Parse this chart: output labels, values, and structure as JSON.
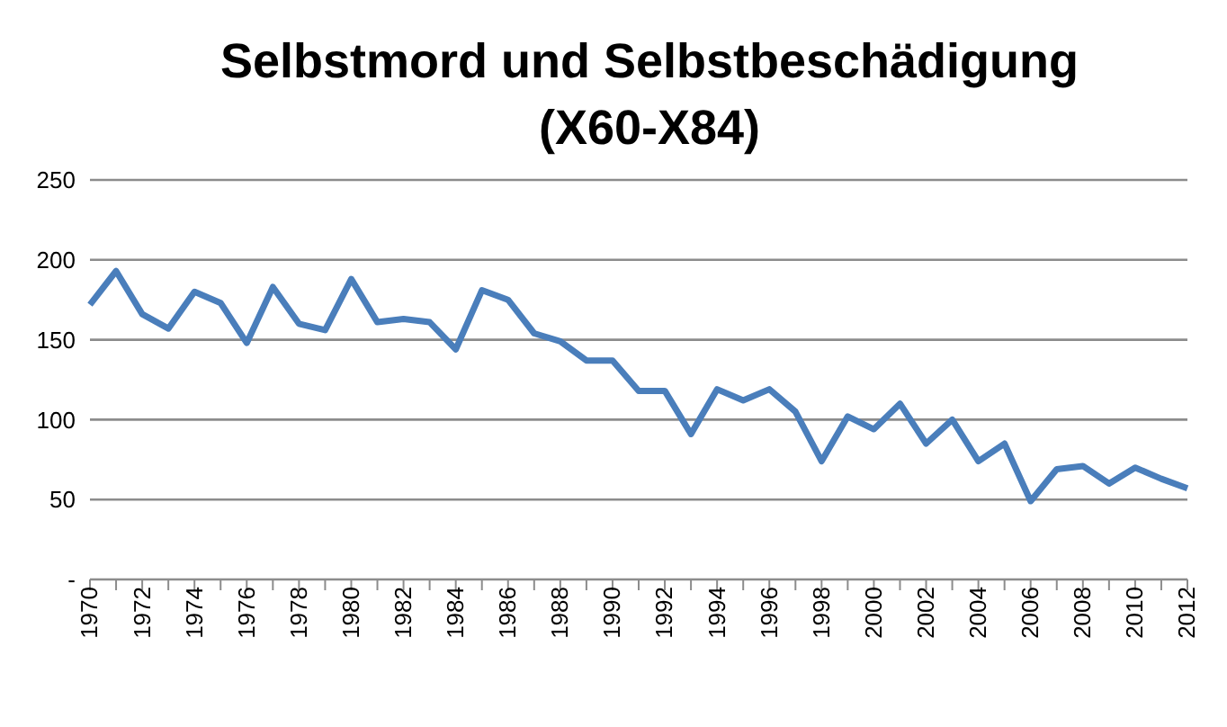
{
  "chart_data": {
    "type": "line",
    "title": "Selbstmord und Selbstbeschädigung\n(X60-X84)",
    "categories": [
      "1970",
      null,
      "1972",
      null,
      "1974",
      null,
      "1976",
      null,
      "1978",
      null,
      "1980",
      null,
      "1982",
      null,
      "1984",
      null,
      "1986",
      null,
      "1988",
      null,
      "1990",
      null,
      "1992",
      null,
      "1994",
      null,
      "1996",
      null,
      "1998",
      null,
      "2000",
      null,
      "2002",
      null,
      "2004",
      null,
      "2006",
      null,
      "2008",
      null,
      "2010",
      null,
      "2012"
    ],
    "series": [
      {
        "color": "#4a7ebb",
        "values": [
          172,
          193,
          166,
          157,
          180,
          173,
          148,
          183,
          160,
          156,
          188,
          161,
          163,
          161,
          144,
          181,
          175,
          154,
          149,
          137,
          137,
          118,
          118,
          91,
          119,
          112,
          119,
          105,
          74,
          102,
          94,
          110,
          85,
          100,
          74,
          85,
          49,
          69,
          71,
          60,
          70,
          63,
          57
        ]
      }
    ],
    "ylim": [
      0,
      250
    ],
    "yticks": [
      {
        "value": 0,
        "label": "-"
      },
      50,
      100,
      150,
      200,
      250
    ],
    "grid": "y",
    "legend": false,
    "marker": "none",
    "line_style": "solid"
  }
}
